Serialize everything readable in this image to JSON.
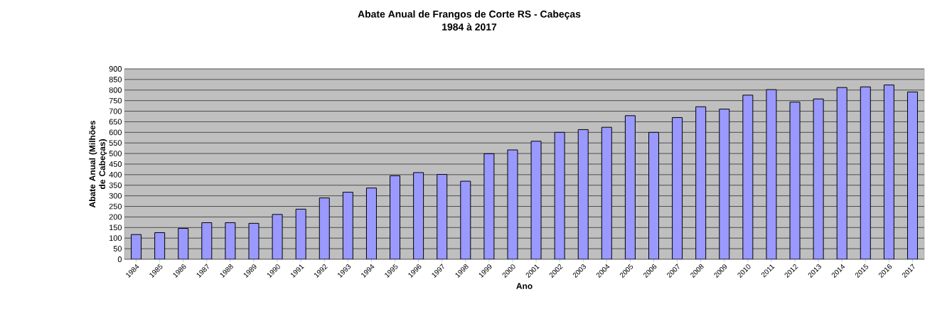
{
  "chart_data": {
    "type": "bar",
    "title": "Abate Anual de Frangos de Corte RS - Cabeças",
    "subtitle": "1984 à 2017",
    "xlabel": "Ano",
    "ylabel": "Abate Anual (Milhões de Cabeças)",
    "categories": [
      "1984",
      "1985",
      "1986",
      "1987",
      "1988",
      "1989",
      "1990",
      "1991",
      "1992",
      "1993",
      "1994",
      "1995",
      "1996",
      "1997",
      "1998",
      "1999",
      "2000",
      "2001",
      "2002",
      "2003",
      "2004",
      "2005",
      "2006",
      "2007",
      "2008",
      "2009",
      "2010",
      "2011",
      "2012",
      "2013",
      "2014",
      "2015",
      "2016",
      "2017"
    ],
    "values": [
      117,
      126,
      146,
      173,
      173,
      170,
      212,
      237,
      290,
      317,
      337,
      395,
      410,
      401,
      369,
      499,
      517,
      558,
      600,
      613,
      624,
      679,
      600,
      670,
      721,
      710,
      776,
      802,
      743,
      758,
      812,
      815,
      824,
      791
    ],
    "color": "#9999ff",
    "ylim": [
      0,
      900
    ],
    "yticks": [
      0,
      50,
      100,
      150,
      200,
      250,
      300,
      350,
      400,
      450,
      500,
      550,
      600,
      650,
      700,
      750,
      800,
      850,
      900
    ],
    "grid": "y",
    "legend": false
  }
}
